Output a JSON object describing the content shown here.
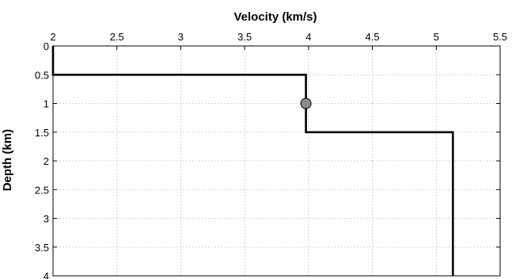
{
  "chart_data": {
    "type": "line",
    "title": "",
    "xlabel": "Velocity (km/s)",
    "ylabel": "Depth (km)",
    "xlim": [
      2,
      5.5
    ],
    "ylim": [
      0,
      4
    ],
    "y_inverted": true,
    "x_axis_position": "top",
    "grid": true,
    "legend": "none",
    "x_ticks": [
      2,
      2.5,
      3,
      3.5,
      4,
      4.5,
      5,
      5.5
    ],
    "x_tick_labels": [
      "2",
      "2.5",
      "3",
      "3.5",
      "4",
      "4.5",
      "5",
      "5.5"
    ],
    "y_ticks": [
      0,
      0.5,
      1,
      1.5,
      2,
      2.5,
      3,
      3.5,
      4
    ],
    "y_tick_labels": [
      "0",
      "0.5",
      "1",
      "1.5",
      "2",
      "2.5",
      "3",
      "3.5",
      "4"
    ],
    "series": [
      {
        "style": "step",
        "color": "#000000",
        "points": [
          [
            2.0,
            0.0
          ],
          [
            2.0,
            0.5
          ],
          [
            3.98,
            0.5
          ],
          [
            3.98,
            1.5
          ],
          [
            5.13,
            1.5
          ],
          [
            5.13,
            4.0
          ]
        ]
      }
    ],
    "markers": [
      {
        "x": 3.98,
        "y": 1.0,
        "color": "#8c8c8c"
      }
    ]
  }
}
